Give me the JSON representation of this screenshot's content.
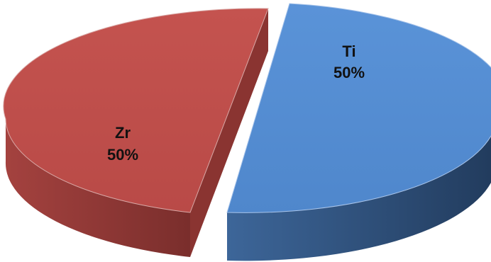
{
  "chart_data": {
    "type": "pie",
    "title": "",
    "slices": [
      {
        "label": "Ti",
        "value": 50,
        "value_label": "50%",
        "color": "#558ed5",
        "side_color": "#2e4f79"
      },
      {
        "label": "Zr",
        "value": 50,
        "value_label": "50%",
        "color": "#c0504d",
        "side_color": "#8c3533"
      }
    ],
    "exploded": true,
    "legend": "none"
  }
}
